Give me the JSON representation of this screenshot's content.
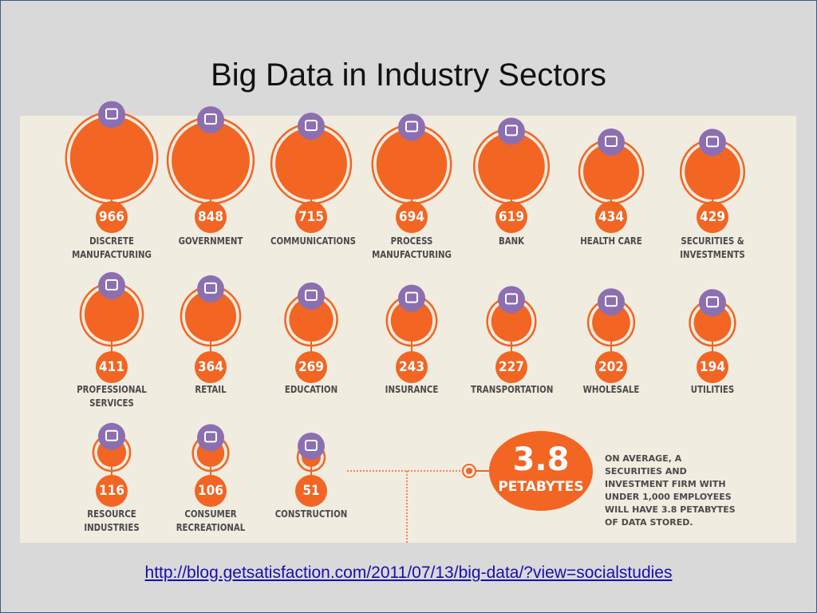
{
  "title": "Big Data in Industry Sectors",
  "sectors": [
    {
      "value": 966,
      "label": "DISCRETE MANUFACTURING"
    },
    {
      "value": 848,
      "label": "GOVERNMENT"
    },
    {
      "value": 715,
      "label": "COMMUNICATIONS"
    },
    {
      "value": 694,
      "label": "PROCESS MANUFACTURING"
    },
    {
      "value": 619,
      "label": "BANK"
    },
    {
      "value": 434,
      "label": "HEALTH CARE"
    },
    {
      "value": 429,
      "label": "SECURITIES & INVESTMENTS"
    },
    {
      "value": 411,
      "label": "PROFESSIONAL SERVICES"
    },
    {
      "value": 364,
      "label": "RETAIL"
    },
    {
      "value": 269,
      "label": "EDUCATION"
    },
    {
      "value": 243,
      "label": "INSURANCE"
    },
    {
      "value": 227,
      "label": "TRANSPORTATION"
    },
    {
      "value": 202,
      "label": "WHOLESALE"
    },
    {
      "value": 194,
      "label": "UTILITIES"
    },
    {
      "value": 116,
      "label": "RESOURCE INDUSTRIES"
    },
    {
      "value": 106,
      "label": "CONSUMER RECREATIONAL"
    },
    {
      "value": 51,
      "label": "CONSTRUCTION"
    }
  ],
  "callout": {
    "value": 3.8,
    "unit": "PETABYTES",
    "text": "ON AVERAGE, A SECURITIES AND INVESTMENT FIRM WITH UNDER 1,000 EMPLOYEES WILL HAVE 3.8 PETABYTES OF DATA STORED."
  },
  "link": "http://blog.getsatisfaction.com/2011/07/13/big-data/?view=socialstudies"
}
